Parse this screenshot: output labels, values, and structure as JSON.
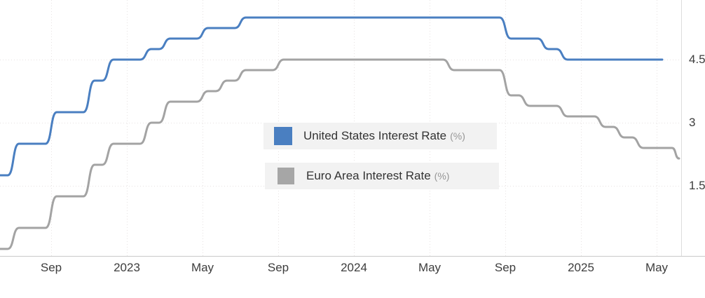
{
  "chart_data": {
    "type": "line",
    "title": "",
    "x_start_month": "2022-05",
    "x_axis": {
      "tick_labels": [
        "Sep",
        "2023",
        "May",
        "Sep",
        "2024",
        "May",
        "Sep",
        "2025",
        "May"
      ],
      "tick_month_indices": [
        4,
        8,
        12,
        16,
        20,
        24,
        28,
        32,
        36
      ]
    },
    "y_axis": {
      "tick_labels": [
        "4.5",
        "3",
        "1.5"
      ],
      "tick_values": [
        4.5,
        3,
        1.5
      ],
      "side": "right",
      "ylim": [
        -0.17,
        5.9
      ]
    },
    "grid": "dotted",
    "legend_position": "center",
    "series": [
      {
        "name": "United States Interest Rate",
        "unit": "%",
        "color": "#4a7fc1",
        "monthly_values": [
          1.0,
          1.75,
          2.5,
          2.5,
          3.25,
          3.25,
          4.0,
          4.5,
          4.5,
          4.75,
          5.0,
          5.0,
          5.25,
          5.25,
          5.5,
          5.5,
          5.5,
          5.5,
          5.5,
          5.5,
          5.5,
          5.5,
          5.5,
          5.5,
          5.5,
          5.5,
          5.5,
          5.5,
          5.0,
          5.0,
          4.75,
          4.5,
          4.5,
          4.5,
          4.5,
          4.5,
          4.5
        ]
      },
      {
        "name": "Euro Area Interest Rate",
        "unit": "%",
        "color": "#a3a3a3",
        "monthly_values": [
          0.0,
          0.0,
          0.5,
          0.5,
          1.25,
          1.25,
          2.0,
          2.5,
          2.5,
          3.0,
          3.5,
          3.5,
          3.75,
          4.0,
          4.25,
          4.25,
          4.5,
          4.5,
          4.5,
          4.5,
          4.5,
          4.5,
          4.5,
          4.5,
          4.5,
          4.25,
          4.25,
          4.25,
          3.65,
          3.4,
          3.4,
          3.15,
          3.15,
          2.9,
          2.65,
          2.4,
          2.4,
          2.15
        ]
      }
    ]
  },
  "legend": {
    "items": [
      {
        "label": "United States Interest Rate",
        "unit": "(%)",
        "color": "#4a7fc1"
      },
      {
        "label": "Euro Area Interest Rate",
        "unit": "(%)",
        "color": "#a6a6a6"
      }
    ]
  }
}
